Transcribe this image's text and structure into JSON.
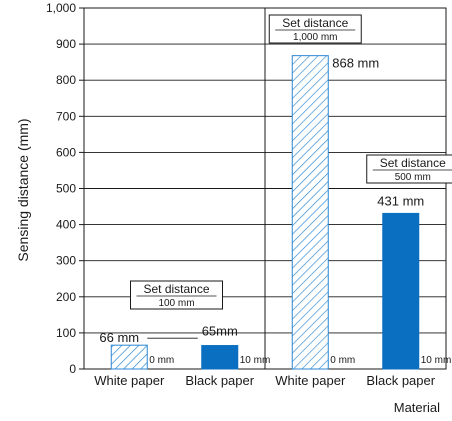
{
  "chart_data": {
    "type": "bar",
    "title": "",
    "ylabel": "Sensing distance (mm)",
    "xlabel": "Material",
    "ylim": [
      0,
      1000
    ],
    "yticks": [
      0,
      100,
      200,
      300,
      400,
      500,
      600,
      700,
      800,
      900,
      1000
    ],
    "ytick_labels": [
      "0",
      "100",
      "200",
      "300",
      "400",
      "500",
      "600",
      "700",
      "800",
      "900",
      "1,000"
    ],
    "grid": true,
    "categories": [
      "White paper",
      "Black paper",
      "White paper",
      "Black paper"
    ],
    "values": [
      66,
      65,
      868,
      431
    ],
    "value_labels": [
      "66 mm",
      "65mm",
      "868 mm",
      "431 mm"
    ],
    "bar_styles": [
      "hatched",
      "solid",
      "hatched",
      "solid"
    ],
    "offset_labels": [
      "0 mm",
      "10 mm",
      "0 mm",
      "10 mm"
    ],
    "annotations": [
      {
        "line1": "Set distance",
        "line2": "100 mm",
        "group": 1
      },
      {
        "line1": "Set distance",
        "line2": "1,000 mm",
        "group": 2
      },
      {
        "line1": "Set distance",
        "line2": "500 mm",
        "group": 2
      }
    ],
    "colors": {
      "bar": "#0b6fc1",
      "hatch": "#2a86d1",
      "axis": "#1a1a1a"
    }
  }
}
